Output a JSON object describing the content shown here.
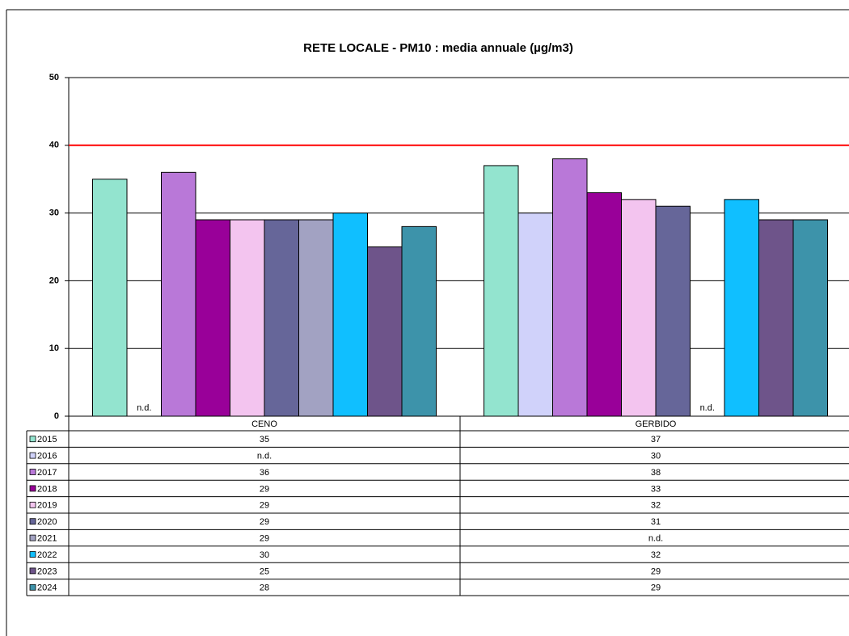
{
  "chart_data": {
    "type": "bar",
    "title": "RETE LOCALE  - PM10 : media annuale (µg/m3)",
    "categories": [
      "CENO",
      "GERBIDO"
    ],
    "series": [
      {
        "name": "2015",
        "color": "#93e4cf",
        "values": [
          35,
          37
        ]
      },
      {
        "name": "2016",
        "color": "#d0d2fa",
        "values": [
          null,
          30
        ],
        "value_labels": [
          "n.d.",
          "30"
        ]
      },
      {
        "name": "2017",
        "color": "#b978d8",
        "values": [
          36,
          38
        ]
      },
      {
        "name": "2018",
        "color": "#990099",
        "values": [
          29,
          33
        ]
      },
      {
        "name": "2019",
        "color": "#f3c4ef",
        "values": [
          29,
          32
        ]
      },
      {
        "name": "2020",
        "color": "#666699",
        "values": [
          29,
          31
        ]
      },
      {
        "name": "2021",
        "color": "#a2a2c2",
        "values": [
          29,
          null
        ],
        "value_labels": [
          "29",
          "n.d."
        ]
      },
      {
        "name": "2022",
        "color": "#10bfff",
        "values": [
          30,
          32
        ]
      },
      {
        "name": "2023",
        "color": "#6e548a",
        "values": [
          25,
          29
        ]
      },
      {
        "name": "2024",
        "color": "#3d93aa",
        "values": [
          28,
          29
        ]
      }
    ],
    "ylim": [
      0,
      50
    ],
    "yticks": [
      0,
      10,
      20,
      30,
      40,
      50
    ],
    "grid": true,
    "reference_line": 40,
    "reference_color": "#ff0000"
  }
}
